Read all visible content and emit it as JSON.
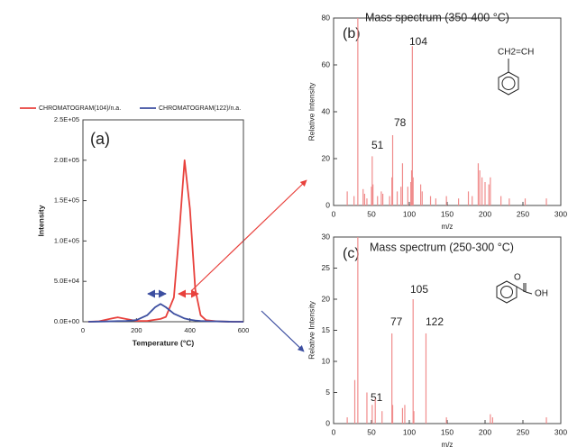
{
  "chart_data": [
    {
      "type": "line",
      "annotations": [
        "(a)"
      ],
      "xlabel": "Temperature (°C)",
      "ylabel": "Intensity",
      "x": [
        20,
        60,
        100,
        130,
        160,
        200,
        240,
        270,
        290,
        310,
        340,
        360,
        380,
        400,
        420,
        440,
        460,
        500,
        560,
        600
      ],
      "series": [
        {
          "name": "CHROMATOGRAM(104)/n.a.",
          "color": "#e8413c",
          "values": [
            0,
            500,
            3500,
            5500,
            3500,
            1000,
            1000,
            2500,
            3500,
            6000,
            30000,
            110000,
            200000,
            140000,
            40000,
            8000,
            2000,
            500,
            0,
            0
          ]
        },
        {
          "name": "CHROMATOGRAM(122)/n.a.",
          "color": "#3c4ea0",
          "values": [
            0,
            200,
            500,
            800,
            1000,
            2000,
            8000,
            18000,
            22000,
            18000,
            10000,
            7000,
            4000,
            2500,
            1500,
            1000,
            700,
            500,
            0,
            0
          ]
        }
      ],
      "xlim": [
        0,
        600
      ],
      "xticks": [
        0,
        200,
        400,
        600
      ],
      "ylim": [
        0,
        250000
      ],
      "yticks": [
        {
          "value": 0,
          "label": "0.0E+00"
        },
        {
          "value": 50000,
          "label": "5.0E+04"
        },
        {
          "value": 100000,
          "label": "1.0E+05"
        },
        {
          "value": 150000,
          "label": "1.5E+05"
        },
        {
          "value": 200000,
          "label": "2.0E+05"
        },
        {
          "value": 250000,
          "label": "2.5E+05"
        }
      ],
      "legend": "top"
    },
    {
      "type": "bar",
      "title": "Mass spectrum (350-400 °C)",
      "title_color": "#e8413c",
      "annotations": [
        "(b)",
        "104",
        "78",
        "51"
      ],
      "structure": [
        "CH2=CH"
      ],
      "xlabel": "m/z",
      "ylabel": "Relative Intensity",
      "color": "#f08c8c",
      "x": [
        18,
        27,
        32,
        39,
        41,
        44,
        50,
        51,
        52,
        58,
        63,
        65,
        74,
        77,
        78,
        84,
        89,
        91,
        98,
        102,
        103,
        104,
        105,
        115,
        117,
        128,
        135,
        149,
        165,
        178,
        183,
        191,
        193,
        196,
        200,
        205,
        207,
        221,
        232,
        253,
        281
      ],
      "values": [
        6,
        4,
        80,
        7,
        5,
        3,
        8,
        21,
        9,
        4,
        6,
        5,
        4,
        12,
        30,
        6,
        8,
        18,
        8,
        10,
        15,
        68,
        12,
        9,
        6,
        4,
        3,
        4,
        3,
        6,
        4,
        18,
        15,
        12,
        10,
        9,
        12,
        4,
        3,
        3,
        3
      ],
      "xlim": [
        0,
        300
      ],
      "xticks": [
        0,
        50,
        100,
        150,
        200,
        250,
        300
      ],
      "ylim": [
        0,
        80
      ],
      "yticks": [
        0,
        20,
        40,
        60,
        80
      ]
    },
    {
      "type": "bar",
      "title": "Mass spectrum (250-300 °C)",
      "title_color": "#3c4ea0",
      "annotations": [
        "(c)",
        "105",
        "77",
        "122",
        "51"
      ],
      "structure": [
        "O",
        "OH"
      ],
      "xlabel": "m/z",
      "ylabel": "Relative Intensity",
      "color": "#f08c8c",
      "x": [
        18,
        28,
        32,
        44,
        51,
        55,
        64,
        77,
        78,
        91,
        94,
        105,
        106,
        122,
        149,
        207,
        210,
        281
      ],
      "values": [
        1,
        7,
        30,
        5,
        3,
        4,
        2,
        14.5,
        3,
        2.5,
        3,
        20,
        2,
        14.5,
        1,
        1.5,
        1,
        1
      ],
      "xlim": [
        0,
        300
      ],
      "xticks": [
        0,
        50,
        100,
        150,
        200,
        250,
        300
      ],
      "ylim": [
        0,
        30
      ],
      "yticks": [
        0,
        5,
        10,
        15,
        20,
        25,
        30
      ]
    }
  ]
}
